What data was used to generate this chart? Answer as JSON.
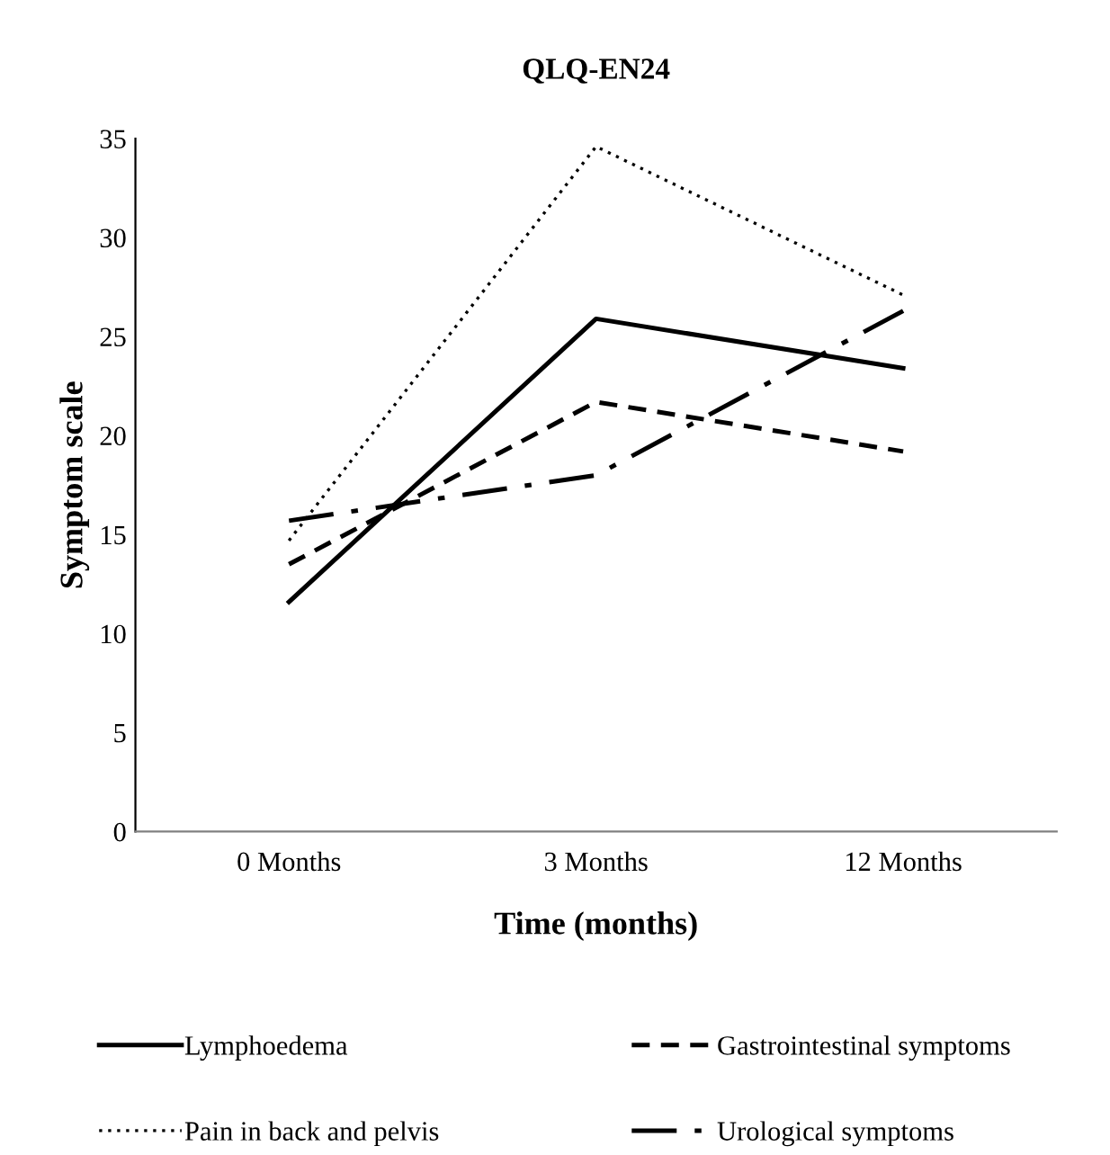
{
  "chart_data": {
    "type": "line",
    "title": "QLQ-EN24",
    "xlabel": "Time (months)",
    "ylabel": "Symptom scale",
    "categories": [
      "0 Months",
      "3 Months",
      "12 Months"
    ],
    "ylim": [
      0,
      35
    ],
    "yticks": [
      0,
      5,
      10,
      15,
      20,
      25,
      30,
      35
    ],
    "grid": false,
    "legend": "bottom",
    "marker": "none",
    "series": [
      {
        "name": "Lymphoedema",
        "color": "#000000",
        "line_style": "solid",
        "values": [
          11.6,
          25.9,
          23.4
        ]
      },
      {
        "name": "Gastrointestinal symptoms",
        "color": "#000000",
        "line_style": "dashed",
        "values": [
          13.5,
          21.7,
          19.2
        ]
      },
      {
        "name": "Pain in back and pelvis",
        "color": "#000000",
        "line_style": "dotted",
        "values": [
          14.7,
          34.6,
          27.1
        ]
      },
      {
        "name": "Urological symptoms",
        "color": "#000000",
        "line_style": "dashdot",
        "values": [
          15.7,
          18.0,
          26.3
        ]
      }
    ]
  }
}
